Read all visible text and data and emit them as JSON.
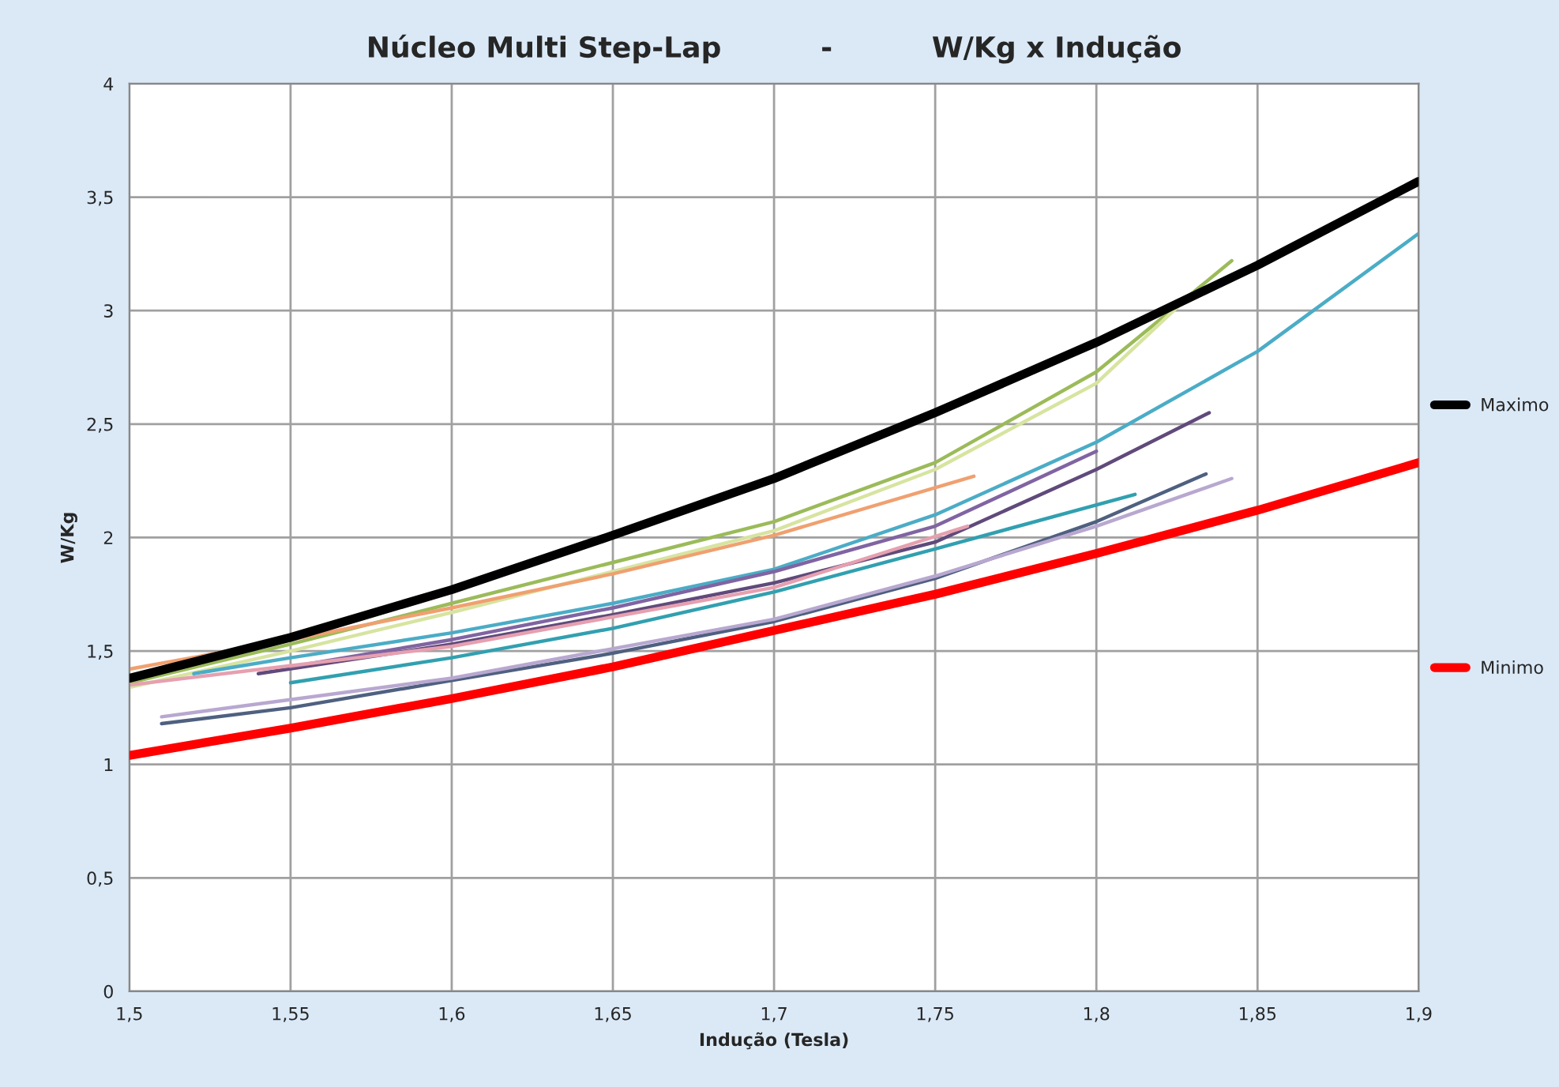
{
  "chart_data": {
    "type": "line",
    "title": "Núcleo Multi Step-Lap          -          W/Kg x Indução",
    "xlabel": "Indução (Tesla)",
    "ylabel": "W/Kg",
    "xlim": [
      1.5,
      1.9
    ],
    "ylim": [
      0,
      4
    ],
    "xticks": [
      {
        "value": 1.5,
        "label": "1,5"
      },
      {
        "value": 1.55,
        "label": "1,55"
      },
      {
        "value": 1.6,
        "label": "1,6"
      },
      {
        "value": 1.65,
        "label": "1,65"
      },
      {
        "value": 1.7,
        "label": "1,7"
      },
      {
        "value": 1.75,
        "label": "1,75"
      },
      {
        "value": 1.8,
        "label": "1,8"
      },
      {
        "value": 1.85,
        "label": "1,85"
      },
      {
        "value": 1.9,
        "label": "1,9"
      }
    ],
    "yticks": [
      0,
      {
        "value": 0.5,
        "label": "0,5"
      },
      1,
      {
        "value": 1.5,
        "label": "1,5"
      },
      2,
      {
        "value": 2.5,
        "label": "2,5"
      },
      3,
      {
        "value": 3.5,
        "label": "3,5"
      },
      4
    ],
    "grid": true,
    "legend": "right",
    "marker": "none",
    "line_style": "solid",
    "series": [
      {
        "color": "#9bbb59",
        "x": [
          1.5,
          1.55,
          1.6,
          1.65,
          1.7,
          1.75,
          1.8,
          1.842
        ],
        "values": [
          1.36,
          1.53,
          1.71,
          1.89,
          2.07,
          2.33,
          2.73,
          3.22
        ]
      },
      {
        "color": "#d7e4a0",
        "x": [
          1.5,
          1.55,
          1.6,
          1.65,
          1.7,
          1.75,
          1.8,
          1.83
        ],
        "values": [
          1.34,
          1.5,
          1.67,
          1.85,
          2.03,
          2.3,
          2.68,
          3.08
        ]
      },
      {
        "color": "#f0a070",
        "x": [
          1.5,
          1.55,
          1.6,
          1.65,
          1.7,
          1.762
        ],
        "values": [
          1.42,
          1.55,
          1.69,
          1.84,
          2.01,
          2.27
        ]
      },
      {
        "color": "#4bacc6",
        "x": [
          1.52,
          1.55,
          1.6,
          1.65,
          1.7,
          1.75,
          1.8,
          1.85,
          1.9
        ],
        "values": [
          1.4,
          1.47,
          1.58,
          1.71,
          1.86,
          2.1,
          2.42,
          2.82,
          3.34
        ]
      },
      {
        "color": "#604a7b",
        "x": [
          1.54,
          1.6,
          1.65,
          1.7,
          1.75,
          1.8,
          1.835
        ],
        "values": [
          1.4,
          1.53,
          1.66,
          1.8,
          1.98,
          2.3,
          2.55
        ]
      },
      {
        "color": "#8064a2",
        "x": [
          1.55,
          1.6,
          1.65,
          1.7,
          1.75,
          1.8
        ],
        "values": [
          1.43,
          1.55,
          1.69,
          1.85,
          2.05,
          2.38
        ]
      },
      {
        "color": "#e6a0b0",
        "x": [
          1.5,
          1.6,
          1.7,
          1.76
        ],
        "values": [
          1.35,
          1.52,
          1.78,
          2.05
        ]
      },
      {
        "color": "#31a0b0",
        "x": [
          1.55,
          1.6,
          1.65,
          1.7,
          1.75,
          1.812
        ],
        "values": [
          1.36,
          1.47,
          1.6,
          1.76,
          1.95,
          2.19
        ]
      },
      {
        "color": "#4f6080",
        "x": [
          1.51,
          1.55,
          1.6,
          1.65,
          1.7,
          1.75,
          1.8,
          1.834
        ],
        "values": [
          1.18,
          1.25,
          1.37,
          1.49,
          1.63,
          1.82,
          2.07,
          2.28
        ]
      },
      {
        "color": "#b8a8d0",
        "x": [
          1.51,
          1.6,
          1.7,
          1.75,
          1.8,
          1.842
        ],
        "values": [
          1.21,
          1.38,
          1.64,
          1.83,
          2.05,
          2.26
        ]
      },
      {
        "name": "Maximo",
        "color": "#000000",
        "x": [
          1.5,
          1.55,
          1.6,
          1.65,
          1.7,
          1.75,
          1.8,
          1.85,
          1.9
        ],
        "values": [
          1.38,
          1.56,
          1.77,
          2.01,
          2.26,
          2.55,
          2.86,
          3.2,
          3.57
        ]
      },
      {
        "name": "Minimo",
        "color": "#ff0000",
        "x": [
          1.5,
          1.55,
          1.6,
          1.65,
          1.7,
          1.75,
          1.8,
          1.85,
          1.9
        ],
        "values": [
          1.04,
          1.16,
          1.29,
          1.43,
          1.59,
          1.75,
          1.93,
          2.12,
          2.33
        ]
      }
    ]
  }
}
